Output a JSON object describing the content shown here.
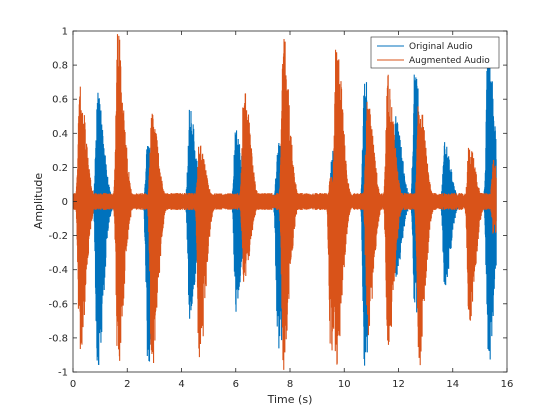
{
  "chart_data": {
    "type": "line",
    "title": "",
    "xlabel": "Time (s)",
    "ylabel": "Amplitude",
    "xlim": [
      0,
      16
    ],
    "ylim": [
      -1,
      1
    ],
    "x_ticks": [
      0,
      2,
      4,
      6,
      8,
      10,
      12,
      14,
      16
    ],
    "y_ticks": [
      -1,
      -0.8,
      -0.6,
      -0.4,
      -0.2,
      0,
      0.2,
      0.4,
      0.6,
      0.8,
      1
    ],
    "x_tick_labels": [
      "0",
      "2",
      "4",
      "6",
      "8",
      "10",
      "12",
      "14",
      "16"
    ],
    "y_tick_labels": [
      "-1",
      "-0.8",
      "-0.6",
      "-0.4",
      "-0.2",
      "0",
      "0.2",
      "0.4",
      "0.6",
      "0.8",
      "1"
    ],
    "grid": false,
    "legend_position": "top-right",
    "series": [
      {
        "name": "Original Audio",
        "color": "#0072BD",
        "noise_floor": 0.04,
        "bursts": [
          {
            "t": 0.35,
            "pos": 0.15,
            "neg": -0.15
          },
          {
            "t": 0.9,
            "pos": 0.65,
            "neg": -1.0
          },
          {
            "t": 2.75,
            "pos": 0.35,
            "neg": -1.0
          },
          {
            "t": 4.3,
            "pos": 0.55,
            "neg": -0.7
          },
          {
            "t": 6.0,
            "pos": 0.45,
            "neg": -0.65
          },
          {
            "t": 7.55,
            "pos": 0.35,
            "neg": -1.0
          },
          {
            "t": 9.55,
            "pos": 0.3,
            "neg": -0.6
          },
          {
            "t": 10.75,
            "pos": 0.75,
            "neg": -1.0
          },
          {
            "t": 11.9,
            "pos": 0.5,
            "neg": -0.45
          },
          {
            "t": 12.6,
            "pos": 0.8,
            "neg": -0.7
          },
          {
            "t": 13.7,
            "pos": 0.35,
            "neg": -0.5
          },
          {
            "t": 15.3,
            "pos": 1.0,
            "neg": -1.0
          }
        ]
      },
      {
        "name": "Augmented Audio",
        "color": "#D95319",
        "noise_floor": 0.05,
        "bursts": [
          {
            "t": 0.25,
            "pos": 0.7,
            "neg": -0.9
          },
          {
            "t": 1.65,
            "pos": 1.0,
            "neg": -1.0
          },
          {
            "t": 2.9,
            "pos": 0.55,
            "neg": -1.0
          },
          {
            "t": 4.65,
            "pos": 0.35,
            "neg": -1.0
          },
          {
            "t": 6.3,
            "pos": 0.7,
            "neg": -0.5
          },
          {
            "t": 7.75,
            "pos": 1.0,
            "neg": -1.0
          },
          {
            "t": 9.5,
            "pos": 0.15,
            "neg": -0.9
          },
          {
            "t": 9.7,
            "pos": 1.0,
            "neg": -1.0
          },
          {
            "t": 10.85,
            "pos": 0.6,
            "neg": -0.8
          },
          {
            "t": 11.6,
            "pos": 0.75,
            "neg": -0.9
          },
          {
            "t": 12.75,
            "pos": 0.65,
            "neg": -1.0
          },
          {
            "t": 14.6,
            "pos": 0.35,
            "neg": -0.75
          },
          {
            "t": 15.5,
            "pos": 0.25,
            "neg": -0.2
          }
        ]
      }
    ]
  }
}
